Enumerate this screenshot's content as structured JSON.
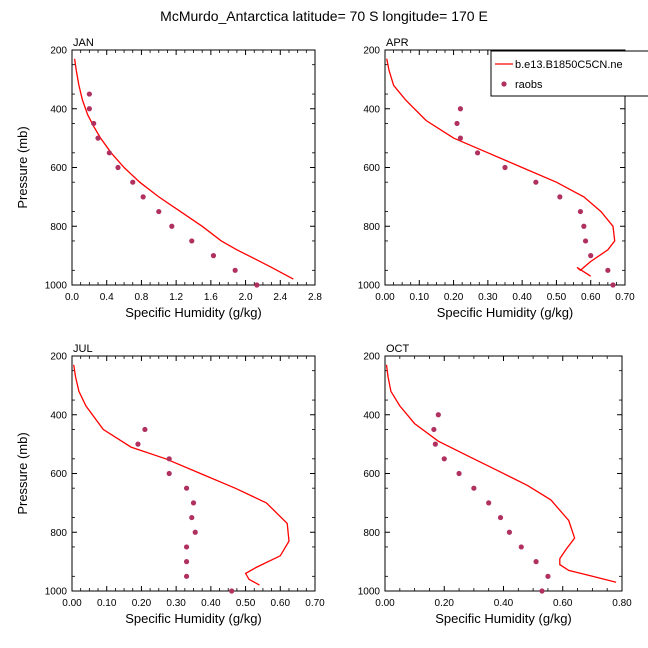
{
  "title": "McMurdo_Antarctica  latitude= 70 S longitude= 170 E",
  "colors": {
    "model": "#ff0000",
    "raobs": "#b03060",
    "axis": "#000000"
  },
  "legend": {
    "placement": "top-right of APR panel",
    "model_label": "b.e13.B1850C5CN.ne",
    "raobs_label": "raobs"
  },
  "chart_data": [
    {
      "type": "line",
      "label": "JAN",
      "xlabel": "Specific Humidity (g/kg)",
      "ylabel": "Pressure (mb)",
      "xlim": [
        0,
        2.8
      ],
      "ylim": [
        1000,
        200
      ],
      "xticks": [
        "0.0",
        "0.4",
        "0.8",
        "1.2",
        "1.6",
        "2.0",
        "2.4",
        "2.8"
      ],
      "xtick_values": [
        0,
        0.4,
        0.8,
        1.2,
        1.6,
        2.0,
        2.4,
        2.8
      ],
      "yticks": [
        "200",
        "400",
        "600",
        "800",
        "1000"
      ],
      "ytick_values": [
        200,
        400,
        600,
        800,
        1000
      ],
      "series": [
        {
          "name": "b.e13.B1850C5CN.ne",
          "kind": "line",
          "x": [
            0.03,
            0.05,
            0.08,
            0.12,
            0.18,
            0.25,
            0.33,
            0.45,
            0.6,
            0.78,
            1.0,
            1.25,
            1.5,
            1.72,
            1.9,
            2.1,
            2.3,
            2.55
          ],
          "y": [
            230,
            270,
            320,
            370,
            420,
            460,
            500,
            550,
            600,
            650,
            700,
            750,
            800,
            850,
            880,
            910,
            940,
            980
          ]
        },
        {
          "name": "raobs",
          "kind": "scatter",
          "x": [
            0.2,
            0.2,
            0.25,
            0.3,
            0.43,
            0.53,
            0.7,
            0.82,
            1.0,
            1.15,
            1.38,
            1.63,
            1.88,
            2.13
          ],
          "y": [
            350,
            400,
            450,
            500,
            550,
            600,
            650,
            700,
            750,
            800,
            850,
            900,
            950,
            1000
          ]
        }
      ]
    },
    {
      "type": "line",
      "label": "APR",
      "xlabel": "Specific Humidity (g/kg)",
      "ylabel": "",
      "xlim": [
        0,
        0.7
      ],
      "ylim": [
        1000,
        200
      ],
      "xticks": [
        "0.00",
        "0.10",
        "0.20",
        "0.30",
        "0.40",
        "0.50",
        "0.60",
        "0.70"
      ],
      "xtick_values": [
        0,
        0.1,
        0.2,
        0.3,
        0.4,
        0.5,
        0.6,
        0.7
      ],
      "yticks": [
        "200",
        "400",
        "600",
        "800",
        "1000"
      ],
      "ytick_values": [
        200,
        400,
        600,
        800,
        1000
      ],
      "series": [
        {
          "name": "b.e13.B1850C5CN.ne",
          "kind": "line",
          "x": [
            0.005,
            0.012,
            0.025,
            0.06,
            0.12,
            0.2,
            0.3,
            0.4,
            0.5,
            0.58,
            0.63,
            0.665,
            0.67,
            0.65,
            0.6,
            0.57,
            0.56,
            0.6
          ],
          "y": [
            230,
            270,
            320,
            370,
            440,
            500,
            550,
            600,
            650,
            700,
            750,
            800,
            850,
            880,
            920,
            950,
            940,
            970
          ]
        },
        {
          "name": "raobs",
          "kind": "scatter",
          "x": [
            0.22,
            0.21,
            0.22,
            0.27,
            0.35,
            0.44,
            0.51,
            0.57,
            0.58,
            0.585,
            0.6,
            0.65,
            0.665
          ],
          "y": [
            400,
            450,
            500,
            550,
            600,
            650,
            700,
            750,
            800,
            850,
            900,
            950,
            1000
          ]
        }
      ]
    },
    {
      "type": "line",
      "label": "JUL",
      "xlabel": "Specific Humidity (g/kg)",
      "ylabel": "Pressure (mb)",
      "xlim": [
        0,
        0.7
      ],
      "ylim": [
        1000,
        200
      ],
      "xticks": [
        "0.00",
        "0.10",
        "0.20",
        "0.30",
        "0.40",
        "0.50",
        "0.60",
        "0.70"
      ],
      "xtick_values": [
        0,
        0.1,
        0.2,
        0.3,
        0.4,
        0.5,
        0.6,
        0.7
      ],
      "yticks": [
        "200",
        "400",
        "600",
        "800",
        "1000"
      ],
      "ytick_values": [
        200,
        400,
        600,
        800,
        1000
      ],
      "series": [
        {
          "name": "b.e13.B1850C5CN.ne",
          "kind": "line",
          "x": [
            0.005,
            0.01,
            0.02,
            0.04,
            0.09,
            0.17,
            0.27,
            0.37,
            0.47,
            0.56,
            0.62,
            0.625,
            0.6,
            0.53,
            0.5,
            0.51,
            0.54
          ],
          "y": [
            230,
            270,
            320,
            370,
            450,
            510,
            550,
            600,
            650,
            700,
            770,
            830,
            880,
            920,
            940,
            960,
            980
          ]
        },
        {
          "name": "raobs",
          "kind": "scatter",
          "x": [
            0.21,
            0.19,
            0.28,
            0.28,
            0.33,
            0.35,
            0.345,
            0.355,
            0.33,
            0.33,
            0.33,
            0.46
          ],
          "y": [
            450,
            500,
            550,
            600,
            650,
            700,
            750,
            800,
            850,
            900,
            950,
            1000
          ]
        }
      ]
    },
    {
      "type": "line",
      "label": "OCT",
      "xlabel": "Specific Humidity (g/kg)",
      "ylabel": "",
      "xlim": [
        0,
        0.8
      ],
      "ylim": [
        1000,
        200
      ],
      "xticks": [
        "0.00",
        "0.20",
        "0.40",
        "0.60",
        "0.80"
      ],
      "xtick_values": [
        0,
        0.2,
        0.4,
        0.6,
        0.8
      ],
      "yticks": [
        "200",
        "400",
        "600",
        "800",
        "1000"
      ],
      "ytick_values": [
        200,
        400,
        600,
        800,
        1000
      ],
      "series": [
        {
          "name": "b.e13.B1850C5CN.ne",
          "kind": "line",
          "x": [
            0.005,
            0.01,
            0.02,
            0.05,
            0.1,
            0.18,
            0.28,
            0.38,
            0.48,
            0.56,
            0.62,
            0.64,
            0.61,
            0.59,
            0.59,
            0.62,
            0.7,
            0.78
          ],
          "y": [
            230,
            270,
            320,
            370,
            430,
            490,
            540,
            590,
            640,
            690,
            760,
            820,
            860,
            890,
            910,
            930,
            950,
            970
          ]
        },
        {
          "name": "raobs",
          "kind": "scatter",
          "x": [
            0.18,
            0.165,
            0.17,
            0.2,
            0.25,
            0.3,
            0.35,
            0.39,
            0.42,
            0.46,
            0.51,
            0.55,
            0.53
          ],
          "y": [
            400,
            450,
            500,
            550,
            600,
            650,
            700,
            750,
            800,
            850,
            900,
            950,
            1000
          ]
        }
      ]
    }
  ]
}
